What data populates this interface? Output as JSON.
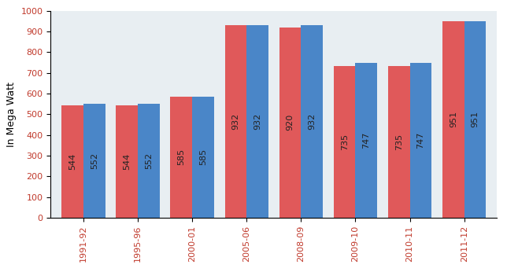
{
  "chart_data": {
    "type": "bar",
    "y_label": "In Mega Watt",
    "categories": [
      "1991-92",
      "1995-96",
      "2000-01",
      "2005-06",
      "2008-09",
      "2009-10",
      "2010-11",
      "2011-12"
    ],
    "series": [
      {
        "color": "#e0595a",
        "values": [
          544,
          544,
          585,
          932,
          920,
          735,
          735,
          951
        ]
      },
      {
        "color": "#4a86c8",
        "values": [
          552,
          552,
          585,
          932,
          932,
          747,
          747,
          951
        ]
      }
    ],
    "ylim": [
      0,
      1000
    ],
    "yticks": [
      0,
      100,
      200,
      300,
      400,
      500,
      600,
      700,
      800,
      900,
      1000
    ],
    "data_labels": true,
    "grid": false
  }
}
